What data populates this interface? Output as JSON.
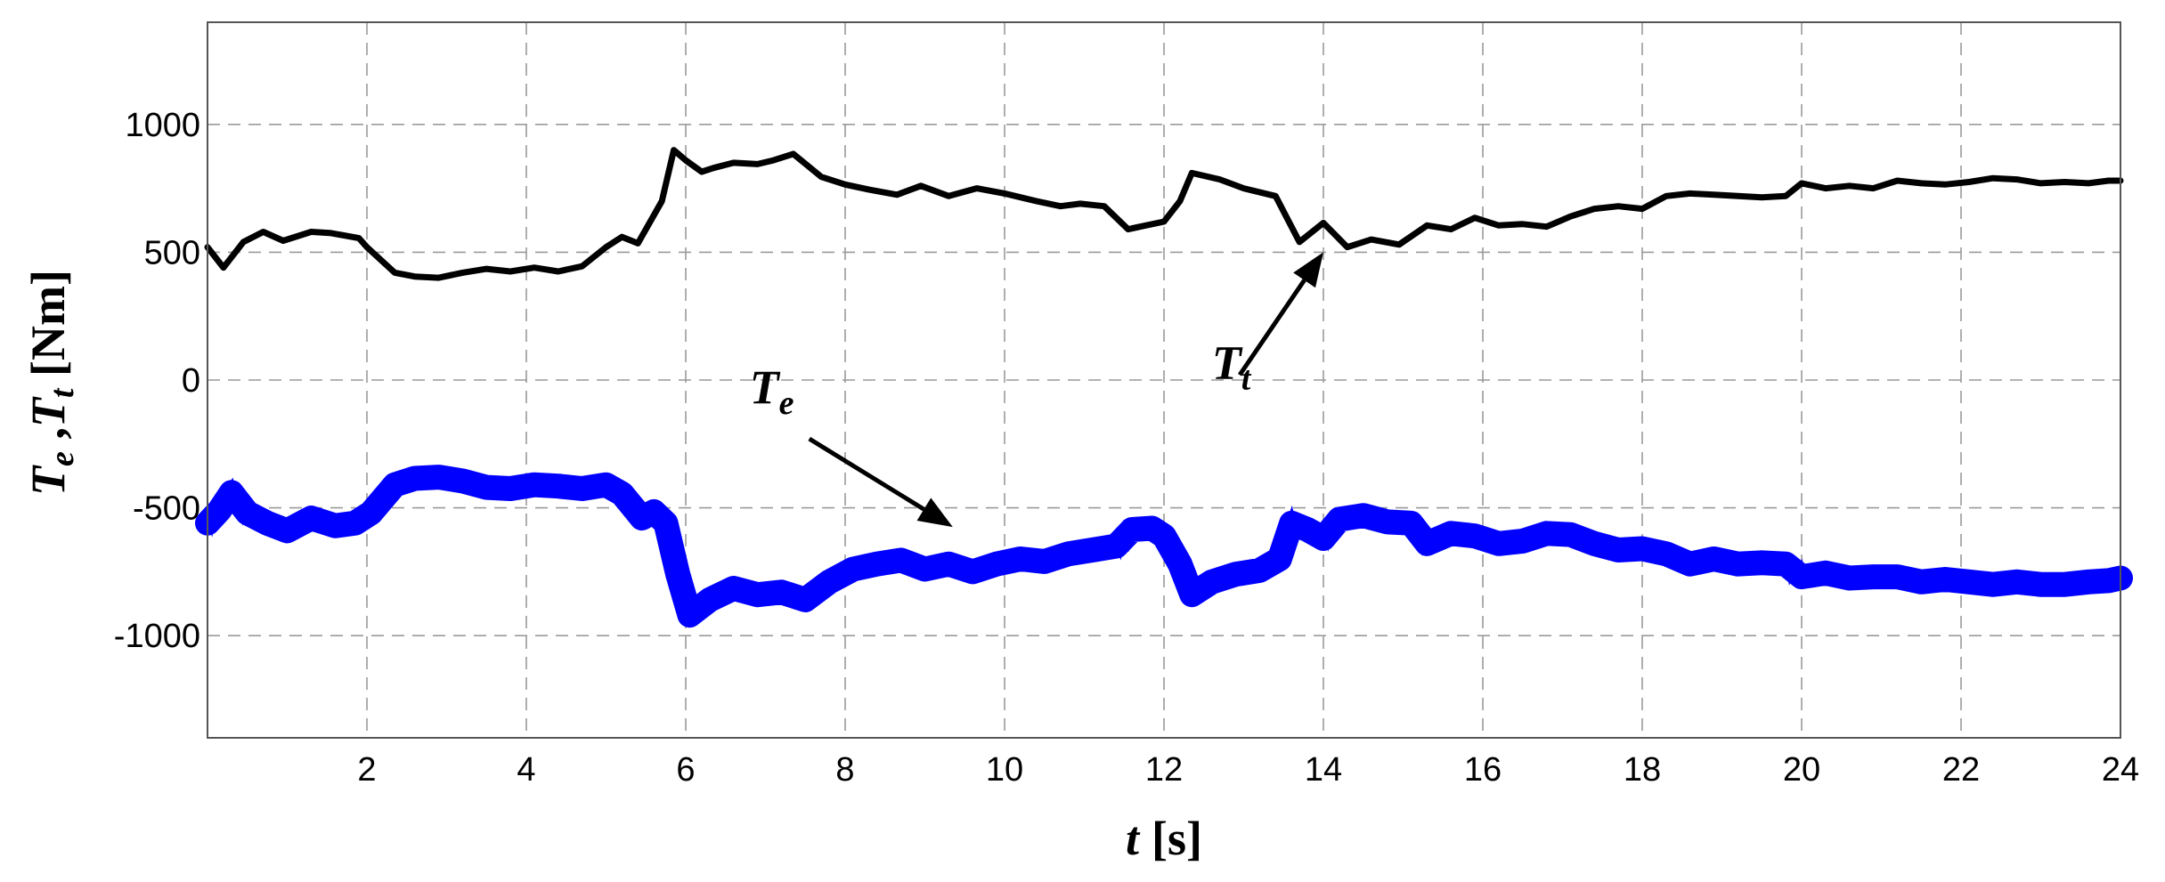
{
  "chart_data": {
    "type": "line",
    "xlabel": {
      "var": "t",
      "unit": "[s]"
    },
    "ylabel": {
      "var1": "T",
      "sub1": "e",
      "sep": " ,",
      "var2": "T",
      "sub2": "t",
      "unit": " [Nm]"
    },
    "xlim": [
      0,
      24
    ],
    "ylim": [
      -1400,
      1400
    ],
    "x_ticks": [
      2,
      4,
      6,
      8,
      10,
      12,
      14,
      16,
      18,
      20,
      22,
      24
    ],
    "x_tick_labels": [
      "2",
      "4",
      "6",
      "8",
      "10",
      "12",
      "14",
      "16",
      "18",
      "20",
      "22",
      "24"
    ],
    "y_ticks": [
      1000,
      500,
      0,
      -500,
      -1000
    ],
    "y_tick_labels": [
      "1000",
      "500",
      "0",
      "-500",
      "-1000"
    ],
    "grid": true,
    "series": [
      {
        "color": "#000000",
        "band": 0,
        "x": [
          0,
          0.2,
          0.45,
          0.7,
          0.95,
          1.3,
          1.55,
          1.9,
          2.0,
          2.35,
          2.6,
          2.9,
          3.2,
          3.5,
          3.8,
          4.1,
          4.4,
          4.7,
          5.0,
          5.2,
          5.4,
          5.7,
          5.85,
          6.0,
          6.2,
          6.35,
          6.6,
          6.9,
          7.1,
          7.35,
          7.7,
          8.0,
          8.3,
          8.65,
          8.95,
          9.3,
          9.65,
          10.0,
          10.4,
          10.7,
          10.95,
          11.25,
          11.55,
          11.7,
          12.0,
          12.2,
          12.35,
          12.7,
          13.0,
          13.4,
          13.7,
          14.0,
          14.3,
          14.6,
          14.95,
          15.3,
          15.6,
          15.9,
          16.2,
          16.5,
          16.8,
          17.1,
          17.4,
          17.7,
          18.0,
          18.3,
          18.6,
          18.9,
          19.2,
          19.5,
          19.8,
          20.0,
          20.3,
          20.6,
          20.9,
          21.2,
          21.5,
          21.8,
          22.1,
          22.4,
          22.7,
          23.0,
          23.3,
          23.6,
          23.85,
          24.0
        ],
        "y": [
          520,
          440,
          540,
          580,
          545,
          580,
          575,
          555,
          520,
          420,
          405,
          400,
          420,
          435,
          425,
          440,
          425,
          445,
          520,
          560,
          535,
          700,
          900,
          860,
          815,
          830,
          850,
          845,
          860,
          885,
          795,
          765,
          745,
          725,
          760,
          720,
          750,
          730,
          700,
          680,
          690,
          680,
          590,
          600,
          620,
          700,
          810,
          785,
          750,
          720,
          540,
          615,
          520,
          550,
          530,
          605,
          590,
          635,
          605,
          610,
          600,
          640,
          670,
          680,
          670,
          720,
          730,
          725,
          720,
          715,
          720,
          770,
          750,
          760,
          750,
          780,
          770,
          765,
          775,
          790,
          785,
          770,
          775,
          770,
          780,
          780
        ]
      },
      {
        "color": "#0000ff",
        "band": 28,
        "x": [
          0,
          0.15,
          0.3,
          0.5,
          0.75,
          1.0,
          1.3,
          1.6,
          1.85,
          2.05,
          2.35,
          2.6,
          2.9,
          3.2,
          3.5,
          3.8,
          4.1,
          4.4,
          4.7,
          5.0,
          5.2,
          5.45,
          5.6,
          5.75,
          5.9,
          6.05,
          6.3,
          6.6,
          6.9,
          7.2,
          7.5,
          7.8,
          8.1,
          8.4,
          8.7,
          9.0,
          9.3,
          9.6,
          9.9,
          10.2,
          10.5,
          10.8,
          11.1,
          11.4,
          11.6,
          11.85,
          12.0,
          12.2,
          12.35,
          12.6,
          12.9,
          13.2,
          13.45,
          13.6,
          13.8,
          14.0,
          14.2,
          14.5,
          14.8,
          15.1,
          15.3,
          15.6,
          15.9,
          16.2,
          16.5,
          16.8,
          17.1,
          17.4,
          17.7,
          18.0,
          18.3,
          18.6,
          18.9,
          19.2,
          19.5,
          19.8,
          20.0,
          20.3,
          20.6,
          20.9,
          21.2,
          21.5,
          21.8,
          22.1,
          22.4,
          22.7,
          23.0,
          23.3,
          23.6,
          23.85,
          24.0
        ],
        "y": [
          -560,
          -510,
          -440,
          -520,
          -560,
          -590,
          -540,
          -570,
          -560,
          -520,
          -410,
          -385,
          -380,
          -395,
          -420,
          -425,
          -410,
          -415,
          -425,
          -410,
          -445,
          -540,
          -515,
          -560,
          -760,
          -920,
          -860,
          -815,
          -840,
          -830,
          -860,
          -790,
          -740,
          -720,
          -705,
          -740,
          -720,
          -750,
          -720,
          -700,
          -710,
          -680,
          -665,
          -650,
          -585,
          -580,
          -610,
          -720,
          -840,
          -790,
          -760,
          -745,
          -700,
          -560,
          -585,
          -620,
          -545,
          -530,
          -555,
          -560,
          -640,
          -600,
          -610,
          -640,
          -630,
          -600,
          -605,
          -640,
          -665,
          -660,
          -680,
          -720,
          -700,
          -720,
          -715,
          -720,
          -770,
          -755,
          -775,
          -770,
          -770,
          -790,
          -780,
          -790,
          -800,
          -790,
          -800,
          -800,
          -790,
          -785,
          -775
        ]
      }
    ],
    "annotations": [
      {
        "var": "T",
        "sub": "e",
        "label_x": 6.8,
        "label_y": -90,
        "arrow_from": [
          7.55,
          -230
        ],
        "arrow_to": [
          9.35,
          -575
        ]
      },
      {
        "var": "T",
        "sub": "t",
        "label_x": 12.6,
        "label_y": 5,
        "arrow_from": [
          12.95,
          20
        ],
        "arrow_to": [
          14.0,
          500
        ]
      }
    ]
  }
}
